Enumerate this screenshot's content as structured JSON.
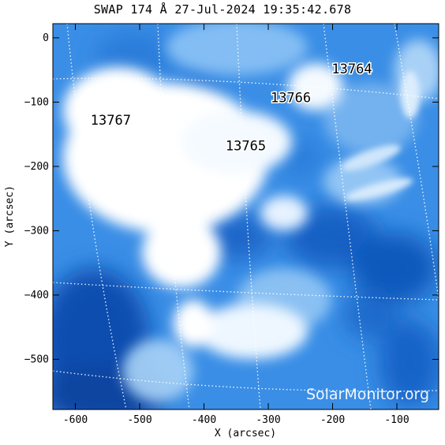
{
  "title": "SWAP 174 Å 27-Jul-2024 19:35:42.678",
  "axes": {
    "xlabel": "X (arcsec)",
    "ylabel": "Y (arcsec)",
    "xlim": [
      -635,
      -35
    ],
    "ylim": [
      -578,
      22
    ],
    "xticks": [
      "-600",
      "-500",
      "-400",
      "-300",
      "-200",
      "-100"
    ],
    "xtick_values": [
      -600,
      -500,
      -400,
      -300,
      -200,
      -100
    ],
    "yticks": [
      "0",
      "−100",
      "−200",
      "−300",
      "−400",
      "−500"
    ],
    "ytick_values": [
      0,
      -100,
      -200,
      -300,
      -400,
      -500
    ]
  },
  "regions": [
    {
      "number": "13764",
      "x": -170,
      "y": -55
    },
    {
      "number": "13766",
      "x": -265,
      "y": -100
    },
    {
      "number": "13767",
      "x": -545,
      "y": -135
    },
    {
      "number": "13765",
      "x": -335,
      "y": -175
    }
  ],
  "watermark": "SolarMonitor.org",
  "colors": {
    "deep": "#0a4fb3",
    "mid": "#2f86e6",
    "light": "#8cc3f5",
    "bright": "#ffffff"
  }
}
